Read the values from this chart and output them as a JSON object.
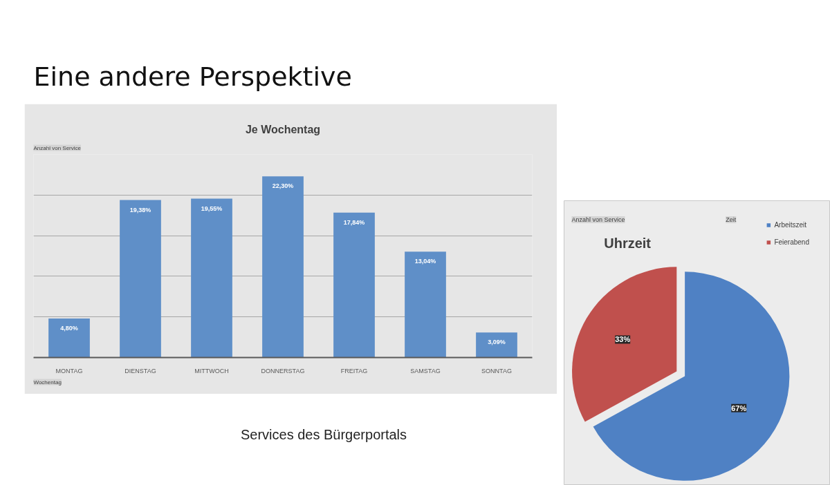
{
  "chart_data": [
    {
      "type": "bar",
      "title": "Je Wochentag",
      "categories": [
        "MONTAG",
        "DIENSTAG",
        "MITTWOCH",
        "DONNERSTAG",
        "FREITAG",
        "SAMSTAG",
        "SONNTAG"
      ],
      "values": [
        4.8,
        19.38,
        19.55,
        22.3,
        17.84,
        13.04,
        3.09
      ],
      "color": "#5f8fc8",
      "value_labels": [
        "4,80%",
        "19,38%",
        "19,55%",
        "22,30%",
        "17,84%",
        "13,04%",
        "3,09%"
      ],
      "ylim": [
        0,
        25
      ],
      "yticks": [
        {
          "value": 5,
          "label": null
        },
        {
          "value": 10,
          "label": null
        },
        {
          "value": 15,
          "label": null
        },
        {
          "value": 20,
          "label": null
        },
        {
          "value": 25,
          "label": null
        }
      ],
      "grid": "y",
      "tick_labels": "x",
      "annotations": [
        "Eine andere Perspektive",
        "Anzahl von Service",
        "Wochentag",
        "Services des Bürgerportals"
      ]
    },
    {
      "type": "pie",
      "title": "Uhrzeit",
      "categories": [
        "Arbeitszeit",
        "Feierabend"
      ],
      "values": [
        67,
        33
      ],
      "colors": [
        "#4f81c4",
        "#c0504d"
      ],
      "value_labels": [
        "67%",
        "33%"
      ],
      "legend": "top right",
      "annotations": [
        "Anzahl von Service",
        "Zeit"
      ]
    }
  ]
}
